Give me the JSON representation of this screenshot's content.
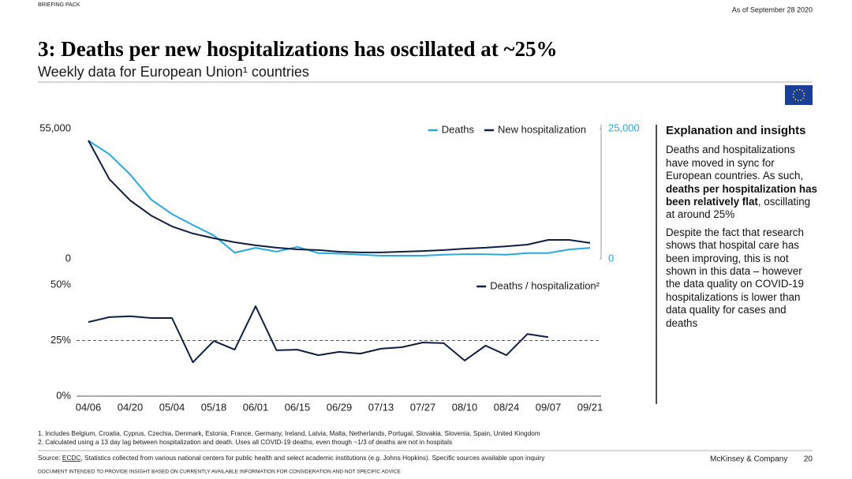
{
  "header": {
    "section": "BRIEFING PACK",
    "date": "As of September 28 2020",
    "title": "3: Deaths per new hospitalizations has oscillated at ~25%",
    "subtitle": "Weekly data for European Union¹ countries"
  },
  "chart_data": [
    {
      "type": "line",
      "legend": "upper right",
      "ylim": [
        0,
        55000
      ],
      "yticks": [
        0,
        {
          "value": 55000,
          "label": "55,000"
        }
      ],
      "y2lim": [
        0,
        25000
      ],
      "y2ticks": [
        0,
        {
          "value": 25000,
          "label": "25,000"
        }
      ],
      "series": [
        {
          "name": "Deaths",
          "color": "#2aa7df",
          "axis": "y2",
          "values": [
            22700,
            20100,
            16200,
            11400,
            8600,
            6500,
            4500,
            1200,
            2100,
            1400,
            2300,
            1100,
            1000,
            800,
            600,
            600,
            600,
            800,
            900,
            900,
            800,
            1100,
            1100,
            1800,
            2100
          ]
        },
        {
          "name": "New hospitalization",
          "color": "#0f1f3d",
          "values": [
            50000,
            33700,
            24700,
            18300,
            13700,
            10700,
            8700,
            7000,
            5700,
            4700,
            4000,
            3700,
            3000,
            2700,
            2700,
            3000,
            3300,
            3700,
            4300,
            4700,
            5300,
            6000,
            8000,
            8000,
            6700
          ]
        }
      ]
    },
    {
      "type": "line",
      "legend": "upper right",
      "categories": [
        "04/06",
        null,
        "04/20",
        null,
        "05/04",
        null,
        "05/18",
        null,
        "06/01",
        null,
        "06/15",
        null,
        "06/29",
        null,
        "07/13",
        null,
        "07/27",
        null,
        "08/10",
        null,
        "08/24",
        null,
        "09/07",
        null,
        "09/21"
      ],
      "ylim": [
        0,
        50
      ],
      "yticks": [
        {
          "value": 0,
          "label": "0%"
        },
        {
          "value": 25,
          "label": "25%"
        },
        {
          "value": 50,
          "label": "50%"
        }
      ],
      "reference_line": 25,
      "series": [
        {
          "name": "Deaths / hospitalization²",
          "color": "#0f1f3d",
          "values": [
            33.3,
            35.5,
            35.9,
            35.1,
            35.1,
            15.2,
            24.8,
            20.9,
            40.4,
            20.6,
            20.9,
            18.4,
            19.9,
            19.1,
            21.3,
            22.0,
            24.1,
            23.8,
            16.0,
            22.7,
            18.4,
            27.9,
            26.5,
            null,
            null
          ]
        }
      ]
    }
  ],
  "sidebar": {
    "title": "Explanation and insights",
    "paragraphs": [
      [
        {
          "text": "Deaths and hospitalizations have moved in sync for European countries. As such, "
        },
        {
          "text": "deaths per hospitalization has been relatively flat",
          "bold": true
        },
        {
          "text": ", oscillating at around 25%"
        }
      ],
      [
        {
          "text": "Despite the fact that research shows that hospital care has been improving, this is not shown in this data – however the data quality on COVID-19 hospitalizations is lower than data quality for cases and deaths"
        }
      ]
    ]
  },
  "footnotes": [
    "1. Includes Belgium, Croatia, Cyprus, Czechia, Denmark, Estonia, France, Germany, Ireland, Latvia, Malta, Netherlands, Portugal, Slovakia, Slovenia, Spain, United Kingdom",
    "2. Calculated using a 13 day lag between hospitalization and death. Uses all COVID-19 deaths, even though ~1/3 of deaths are not in hospitals"
  ],
  "source": {
    "label": "Source: ",
    "link": "ECDC",
    "text": ", Statistics collected from various national centers for public health and select academic institutions (e.g. Johns Hopkins). Specific sources available upon inquiry"
  },
  "footer": {
    "company": "McKinsey & Company",
    "page": "20",
    "disclaimer": "DOCUMENT INTENDED TO PROVIDE INSIGHT BASED ON CURRENTLY AVAILABLE INFORMATION FOR CONSIDERATION AND NOT SPECIFIC ADVICE"
  }
}
